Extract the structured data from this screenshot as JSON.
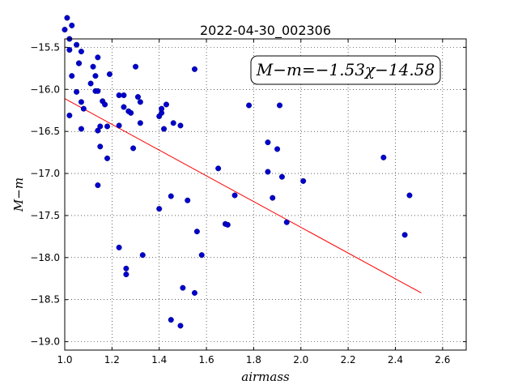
{
  "chart_data": {
    "type": "scatter",
    "title": "2022-04-30_002306",
    "xlabel": "airmass",
    "ylabel": "M−m",
    "xlim": [
      1.0,
      2.7
    ],
    "ylim": [
      -19.1,
      -15.4
    ],
    "y_inverted": true,
    "grid": true,
    "x_ticks": [
      1.0,
      1.2,
      1.4,
      1.6,
      1.8,
      2.0,
      2.2,
      2.4,
      2.6
    ],
    "x_tick_labels": [
      "1.0",
      "1.2",
      "1.4",
      "1.6",
      "1.8",
      "2.0",
      "2.2",
      "2.4",
      "2.6"
    ],
    "y_ticks": [
      -15.5,
      -16.0,
      -16.5,
      -17.0,
      -17.5,
      -18.0,
      -18.5,
      -19.0
    ],
    "y_tick_labels": [
      "−15.5",
      "−16.0",
      "−16.5",
      "−17.0",
      "−17.5",
      "−18.0",
      "−18.5",
      "−19.0"
    ],
    "point_color": "#0000cc",
    "fit_color": "#ff0000",
    "annotation": "M−m=−1.53χ−14.58",
    "fit": {
      "slope": -1.53,
      "intercept": -14.58,
      "x_range": [
        1.0,
        2.51
      ]
    },
    "points": [
      [
        1.0,
        -15.29
      ],
      [
        1.01,
        -15.15
      ],
      [
        1.02,
        -15.4
      ],
      [
        1.02,
        -15.53
      ],
      [
        1.02,
        -16.31
      ],
      [
        1.03,
        -15.84
      ],
      [
        1.03,
        -15.24
      ],
      [
        1.05,
        -15.47
      ],
      [
        1.05,
        -16.03
      ],
      [
        1.06,
        -15.69
      ],
      [
        1.06,
        -15.69
      ],
      [
        1.07,
        -15.55
      ],
      [
        1.07,
        -16.47
      ],
      [
        1.07,
        -16.15
      ],
      [
        1.08,
        -16.23
      ],
      [
        1.11,
        -15.93
      ],
      [
        1.12,
        -15.73
      ],
      [
        1.13,
        -16.02
      ],
      [
        1.13,
        -15.84
      ],
      [
        1.14,
        -15.62
      ],
      [
        1.14,
        -16.02
      ],
      [
        1.14,
        -17.14
      ],
      [
        1.14,
        -16.49
      ],
      [
        1.15,
        -16.44
      ],
      [
        1.15,
        -16.68
      ],
      [
        1.16,
        -16.14
      ],
      [
        1.17,
        -16.18
      ],
      [
        1.18,
        -16.44
      ],
      [
        1.18,
        -16.82
      ],
      [
        1.19,
        -15.82
      ],
      [
        1.23,
        -16.43
      ],
      [
        1.23,
        -16.07
      ],
      [
        1.23,
        -17.88
      ],
      [
        1.25,
        -16.07
      ],
      [
        1.25,
        -16.21
      ],
      [
        1.26,
        -18.2
      ],
      [
        1.26,
        -18.13
      ],
      [
        1.27,
        -16.26
      ],
      [
        1.28,
        -16.28
      ],
      [
        1.29,
        -16.7
      ],
      [
        1.3,
        -15.73
      ],
      [
        1.31,
        -16.09
      ],
      [
        1.32,
        -16.15
      ],
      [
        1.32,
        -16.4
      ],
      [
        1.33,
        -17.97
      ],
      [
        1.4,
        -17.42
      ],
      [
        1.4,
        -16.32
      ],
      [
        1.41,
        -16.28
      ],
      [
        1.41,
        -16.23
      ],
      [
        1.42,
        -16.47
      ],
      [
        1.43,
        -16.18
      ],
      [
        1.45,
        -17.27
      ],
      [
        1.45,
        -18.74
      ],
      [
        1.46,
        -16.4
      ],
      [
        1.49,
        -18.81
      ],
      [
        1.49,
        -16.43
      ],
      [
        1.5,
        -18.36
      ],
      [
        1.52,
        -17.32
      ],
      [
        1.55,
        -15.76
      ],
      [
        1.55,
        -18.42
      ],
      [
        1.56,
        -17.69
      ],
      [
        1.58,
        -17.97
      ],
      [
        1.65,
        -16.94
      ],
      [
        1.68,
        -17.6
      ],
      [
        1.69,
        -17.61
      ],
      [
        1.72,
        -17.26
      ],
      [
        1.78,
        -16.19
      ],
      [
        1.86,
        -16.98
      ],
      [
        1.86,
        -16.63
      ],
      [
        1.88,
        -17.29
      ],
      [
        1.9,
        -16.71
      ],
      [
        1.91,
        -16.19
      ],
      [
        1.92,
        -17.04
      ],
      [
        1.94,
        -17.58
      ],
      [
        2.01,
        -17.09
      ],
      [
        2.35,
        -16.81
      ],
      [
        2.44,
        -17.73
      ],
      [
        2.46,
        -17.26
      ]
    ]
  }
}
